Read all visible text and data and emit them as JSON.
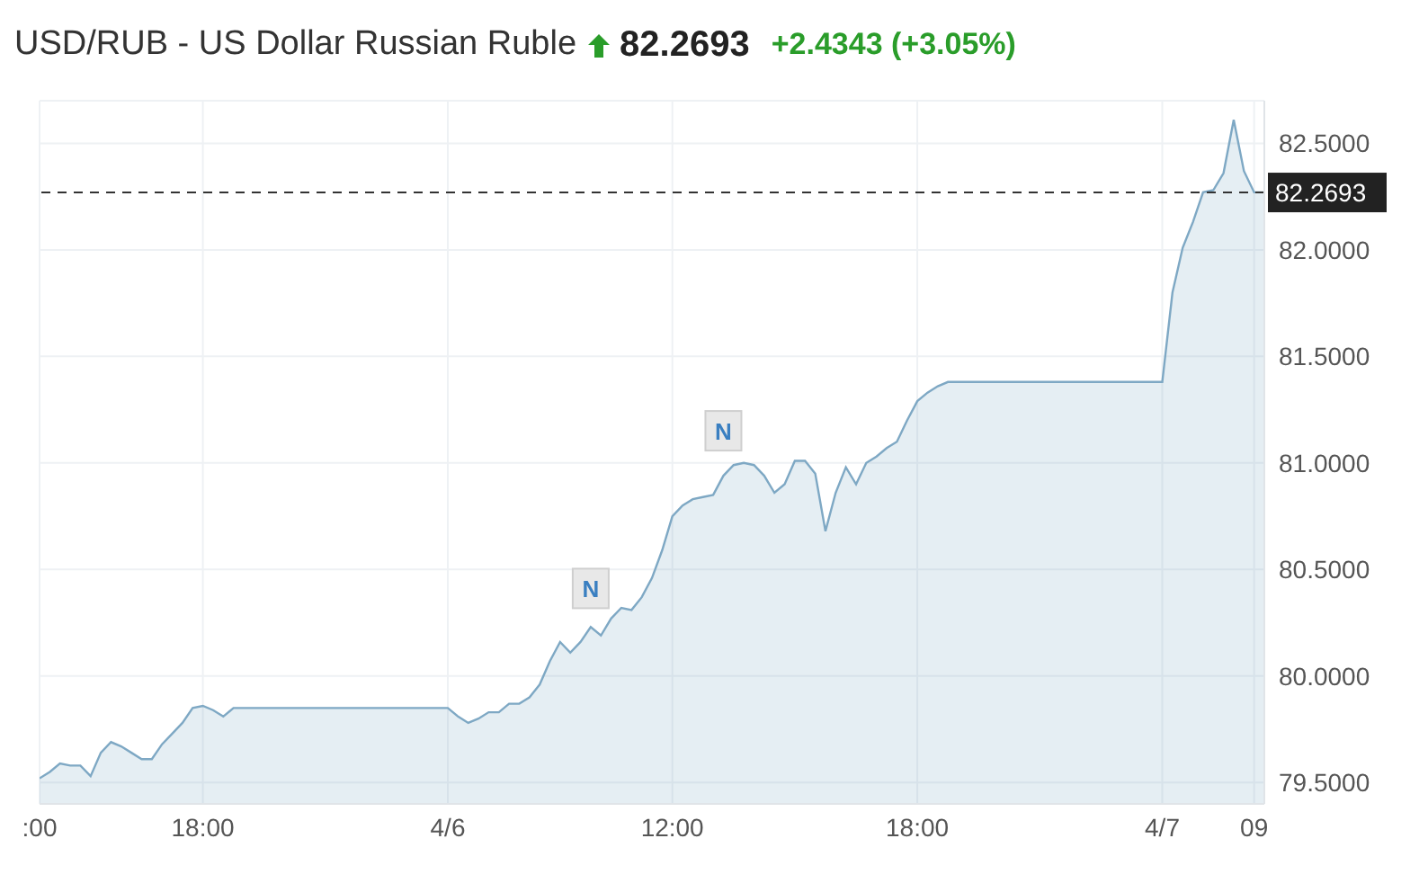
{
  "chart_data": {
    "type": "area",
    "title": "USD/RUB - US Dollar Russian Ruble",
    "subtitle": "82.2693",
    "annotations": [
      "+2.4343 (+3.05%)",
      {
        "text": "N",
        "y": 80.2
      },
      {
        "text": "N",
        "y": 80.94
      }
    ],
    "categories": [
      ":00",
      null,
      null,
      null,
      null,
      null,
      null,
      null,
      null,
      null,
      null,
      null,
      null,
      null,
      null,
      null,
      "18:00",
      null,
      null,
      null,
      null,
      null,
      null,
      null,
      null,
      null,
      null,
      null,
      null,
      null,
      null,
      null,
      null,
      null,
      null,
      null,
      null,
      null,
      null,
      null,
      "4/6",
      null,
      null,
      null,
      null,
      null,
      null,
      null,
      null,
      null,
      null,
      null,
      null,
      null,
      null,
      null,
      null,
      null,
      null,
      null,
      null,
      null,
      "12:00",
      null,
      null,
      null,
      null,
      null,
      null,
      null,
      null,
      null,
      null,
      null,
      null,
      null,
      null,
      null,
      null,
      null,
      null,
      null,
      null,
      null,
      null,
      null,
      "18:00",
      null,
      null,
      null,
      null,
      null,
      null,
      null,
      null,
      null,
      null,
      null,
      null,
      null,
      null,
      null,
      null,
      null,
      null,
      null,
      null,
      null,
      null,
      null,
      "4/7",
      null,
      null,
      null,
      null,
      null,
      null,
      null,
      null,
      "09",
      null
    ],
    "series": [
      {
        "color": "#7ea8c4",
        "values": [
          79.52,
          79.55,
          79.59,
          79.58,
          79.58,
          79.53,
          79.64,
          79.69,
          79.67,
          79.64,
          79.61,
          79.61,
          79.68,
          79.73,
          79.78,
          79.85,
          79.86,
          79.84,
          79.81,
          79.85,
          79.85,
          79.85,
          79.85,
          79.85,
          79.85,
          79.85,
          79.85,
          79.85,
          79.85,
          79.85,
          79.85,
          79.85,
          79.85,
          79.85,
          79.85,
          79.85,
          79.85,
          79.85,
          79.85,
          79.85,
          79.85,
          79.81,
          79.78,
          79.8,
          79.83,
          79.83,
          79.87,
          79.87,
          79.9,
          79.96,
          80.07,
          80.16,
          80.11,
          80.16,
          80.23,
          80.19,
          80.27,
          80.32,
          80.31,
          80.37,
          80.46,
          80.59,
          80.75,
          80.8,
          80.83,
          80.84,
          80.85,
          80.94,
          80.99,
          81.0,
          80.99,
          80.94,
          80.86,
          80.9,
          81.01,
          81.01,
          80.95,
          80.68,
          80.86,
          80.98,
          80.9,
          81.0,
          81.03,
          81.07,
          81.1,
          81.2,
          81.29,
          81.33,
          81.36,
          81.38,
          81.38,
          81.38,
          81.38,
          81.38,
          81.38,
          81.38,
          81.38,
          81.38,
          81.38,
          81.38,
          81.38,
          81.38,
          81.38,
          81.38,
          81.38,
          81.38,
          81.38,
          81.38,
          81.38,
          81.38,
          81.38,
          81.8,
          82.01,
          82.13,
          82.27,
          82.28,
          82.36,
          82.61,
          82.37,
          82.27,
          82.27
        ]
      }
    ],
    "ylim": [
      79.4,
      82.7
    ],
    "yticks": [
      {
        "value": 79.5,
        "label": "79.5000"
      },
      {
        "value": 80,
        "label": "80.0000"
      },
      {
        "value": 80.5,
        "label": "80.5000"
      },
      {
        "value": 81,
        "label": "81.0000"
      },
      {
        "value": 81.5,
        "label": "81.5000"
      },
      {
        "value": 82,
        "label": "82.0000"
      },
      {
        "value": 82.5,
        "label": "82.5000"
      }
    ],
    "ref_lines": [
      {
        "axis": "y",
        "value": 82.2693,
        "label": "82.2693",
        "color": "#333333",
        "line_style": "dashed"
      }
    ],
    "grid": true
  }
}
